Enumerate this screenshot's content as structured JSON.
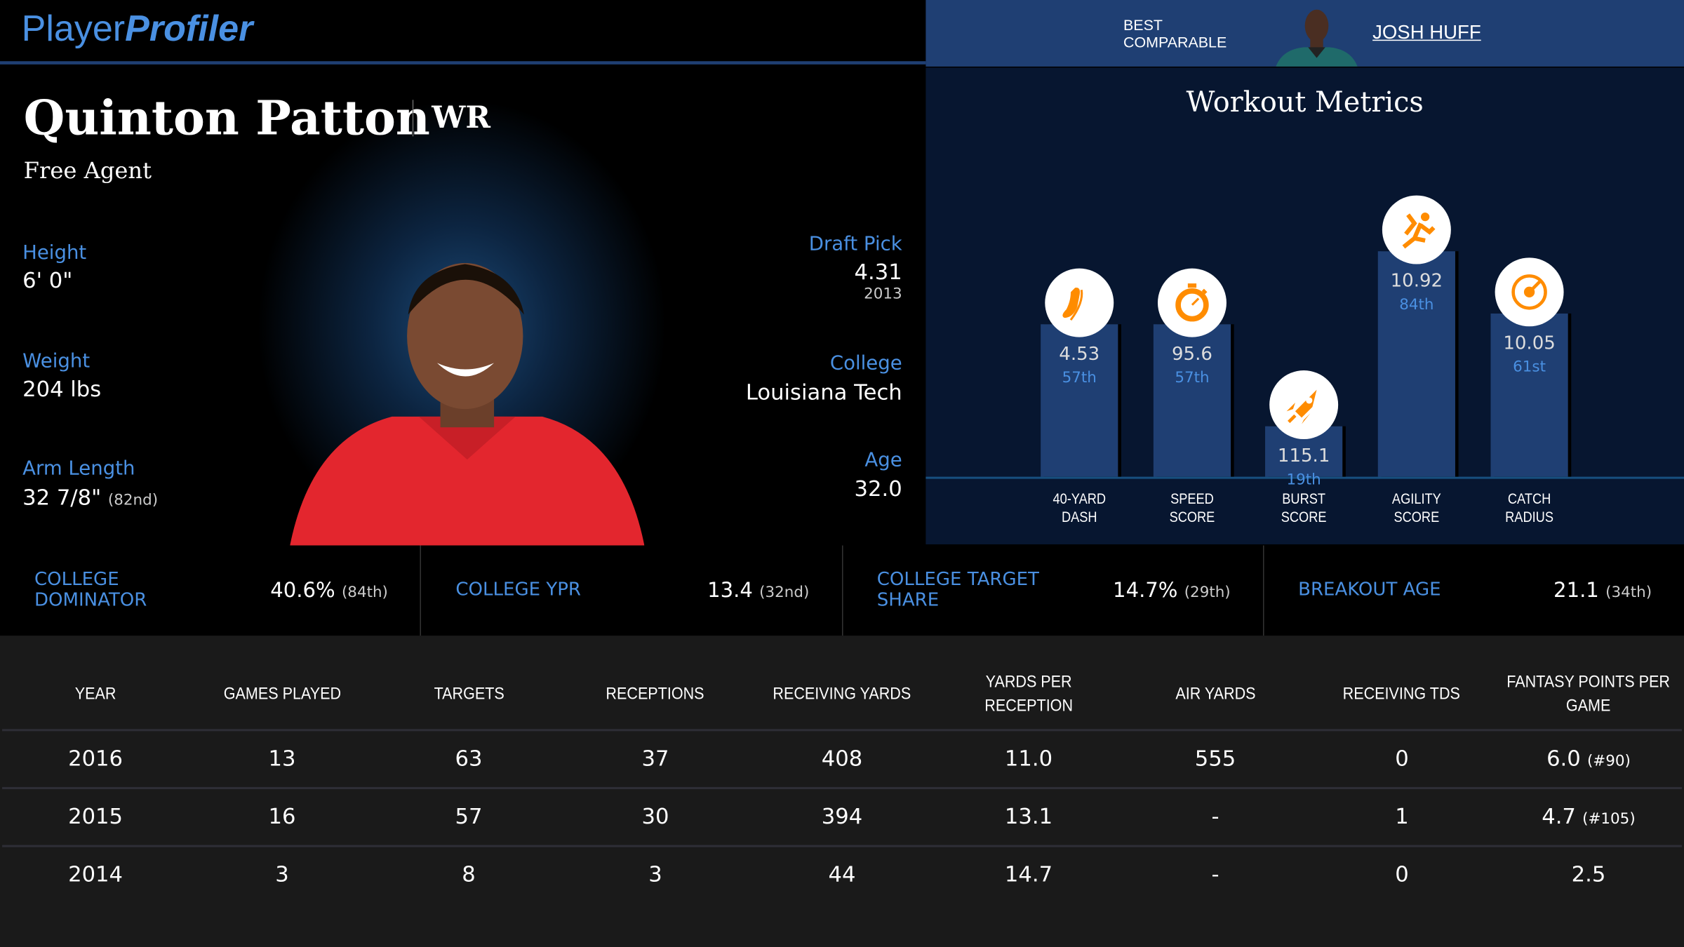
{
  "app": {
    "logo_light": "Player",
    "logo_bold": "Profiler"
  },
  "comparable": {
    "label_line1": "BEST",
    "label_line2": "COMPARABLE",
    "name": "JOSH HUFF"
  },
  "player": {
    "name": "Quinton Patton",
    "position": "WR",
    "team": "Free Agent",
    "height_label": "Height",
    "height": "6' 0\"",
    "weight_label": "Weight",
    "weight": "204 lbs",
    "arm_label": "Arm Length",
    "arm": "32 7/8\"",
    "arm_rank": "(82nd)",
    "draft_label": "Draft Pick",
    "draft": "4.31",
    "draft_year": "2013",
    "college_label": "College",
    "college": "Louisiana Tech",
    "age_label": "Age",
    "age": "32.0"
  },
  "workout": {
    "title": "Workout Metrics",
    "accent": "#ff8c00",
    "metrics": [
      {
        "l1": "40-YARD",
        "l2": "DASH",
        "value": "4.53",
        "pct_label": "57th",
        "percentile": 57,
        "icon": "shoe-icon"
      },
      {
        "l1": "SPEED",
        "l2": "SCORE",
        "value": "95.6",
        "pct_label": "57th",
        "percentile": 57,
        "icon": "stopwatch-icon"
      },
      {
        "l1": "BURST",
        "l2": "SCORE",
        "value": "115.1",
        "pct_label": "19th",
        "percentile": 19,
        "icon": "rocket-icon"
      },
      {
        "l1": "AGILITY",
        "l2": "SCORE",
        "value": "10.92",
        "pct_label": "84th",
        "percentile": 84,
        "icon": "runner-icon"
      },
      {
        "l1": "CATCH",
        "l2": "RADIUS",
        "value": "10.05",
        "pct_label": "61st",
        "percentile": 61,
        "icon": "target-icon"
      }
    ]
  },
  "college_stats": [
    {
      "label": "COLLEGE DOMINATOR",
      "value": "40.6%",
      "rank": "(84th)"
    },
    {
      "label": "COLLEGE YPR",
      "value": "13.4",
      "rank": "(32nd)"
    },
    {
      "label": "COLLEGE TARGET SHARE",
      "value": "14.7%",
      "rank": "(29th)"
    },
    {
      "label": "BREAKOUT AGE",
      "value": "21.1",
      "rank": "(34th)"
    }
  ],
  "table": {
    "headers": [
      "YEAR",
      "GAMES PLAYED",
      "TARGETS",
      "RECEPTIONS",
      "RECEIVING YARDS",
      "YARDS PER RECEPTION",
      "AIR YARDS",
      "RECEIVING TDS",
      "FANTASY POINTS PER GAME"
    ],
    "rows": [
      {
        "cells": [
          "2016",
          "13",
          "63",
          "37",
          "408",
          "11.0",
          "555",
          "0",
          "6.0"
        ],
        "rank": "(#90)"
      },
      {
        "cells": [
          "2015",
          "16",
          "57",
          "30",
          "394",
          "13.1",
          "-",
          "1",
          "4.7"
        ],
        "rank": "(#105)"
      },
      {
        "cells": [
          "2014",
          "3",
          "8",
          "3",
          "44",
          "14.7",
          "-",
          "0",
          "2.5"
        ],
        "rank": ""
      }
    ]
  }
}
